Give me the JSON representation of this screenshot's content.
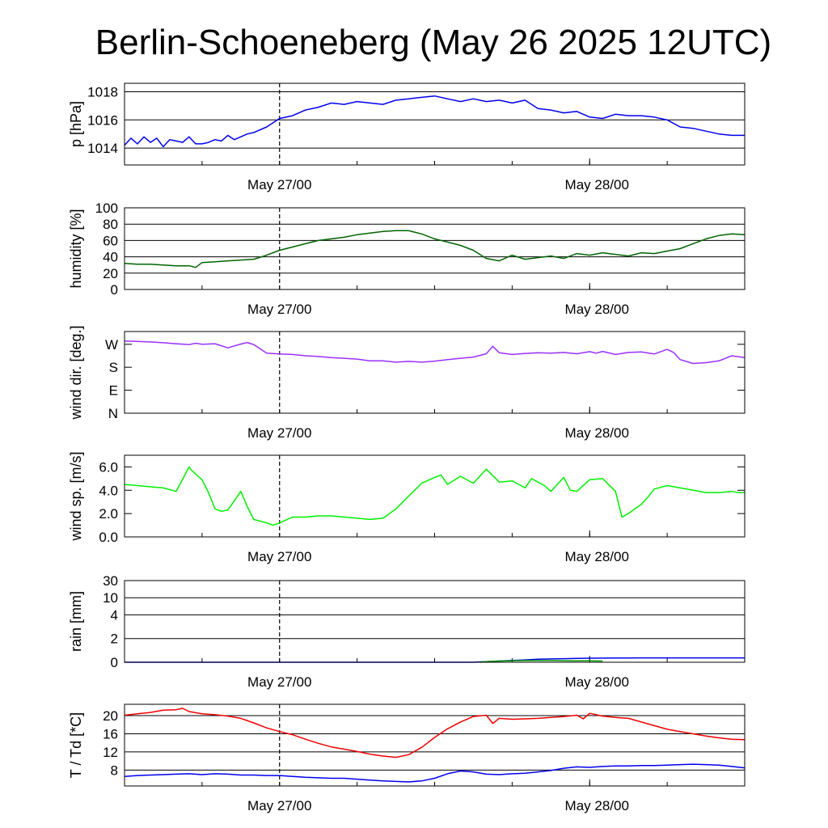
{
  "title": "Berlin-Schoeneberg (May 26 2025 12UTC)",
  "x_labels": [
    "May 27/00",
    "May 28/00"
  ],
  "chart_data": [
    {
      "type": "line",
      "ylabel": "p [hPa]",
      "ylim": [
        1012.8,
        1018.6
      ],
      "yticks": [
        1014,
        1016,
        1018
      ],
      "ytick_labels": [
        "1014",
        "1016",
        "1018"
      ],
      "grid": true,
      "series": [
        {
          "color": "#0000ee",
          "x": [
            0,
            0.5,
            1,
            1.5,
            2,
            2.5,
            3,
            3.5,
            4,
            4.5,
            5,
            5.5,
            6,
            6.5,
            7,
            7.5,
            8,
            8.5,
            9,
            9.5,
            10,
            11,
            12,
            13,
            14,
            15,
            16,
            17,
            18,
            19,
            20,
            21,
            22,
            23,
            24,
            25,
            26,
            27,
            28,
            29,
            30,
            31,
            32,
            33,
            34,
            35,
            36,
            37,
            38,
            39,
            40,
            41,
            42,
            43,
            44,
            45,
            46,
            47,
            48
          ],
          "y": [
            1014.2,
            1014.7,
            1014.3,
            1014.8,
            1014.4,
            1014.7,
            1014.1,
            1014.6,
            1014.5,
            1014.4,
            1014.8,
            1014.3,
            1014.3,
            1014.4,
            1014.6,
            1014.5,
            1014.9,
            1014.6,
            1014.8,
            1015.0,
            1015.1,
            1015.5,
            1016.1,
            1016.3,
            1016.7,
            1016.9,
            1017.2,
            1017.1,
            1017.3,
            1017.2,
            1017.1,
            1017.4,
            1017.5,
            1017.6,
            1017.7,
            1017.5,
            1017.3,
            1017.5,
            1017.3,
            1017.4,
            1017.2,
            1017.4,
            1016.8,
            1016.7,
            1016.5,
            1016.6,
            1016.2,
            1016.1,
            1016.4,
            1016.3,
            1016.3,
            1016.2,
            1016.0,
            1015.5,
            1015.4,
            1015.2,
            1015.0,
            1014.9,
            1014.9
          ]
        }
      ]
    },
    {
      "type": "line",
      "ylabel": "humidity [%]",
      "ylim": [
        0,
        100
      ],
      "yticks": [
        0,
        20,
        40,
        60,
        80,
        100
      ],
      "ytick_labels": [
        "0",
        "20",
        "40",
        "60",
        "80",
        "100"
      ],
      "grid": true,
      "series": [
        {
          "color": "#006400",
          "x": [
            0,
            1,
            2,
            3,
            4,
            5,
            5.5,
            6,
            7,
            8,
            9,
            10,
            11,
            12,
            13,
            14,
            15,
            16,
            17,
            18,
            19,
            20,
            21,
            22,
            23,
            24,
            25,
            26,
            27,
            27.5,
            28,
            29,
            30,
            31,
            32,
            33,
            34,
            35,
            36,
            37,
            38,
            39,
            40,
            41,
            42,
            43,
            44,
            45,
            46,
            47,
            48
          ],
          "y": [
            32,
            31,
            31,
            30,
            29,
            29,
            27,
            33,
            34,
            35,
            36,
            37,
            42,
            48,
            52,
            56,
            60,
            62,
            64,
            67,
            69,
            71,
            72,
            72,
            68,
            62,
            58,
            54,
            48,
            43,
            38,
            35,
            42,
            37,
            39,
            41,
            38,
            44,
            42,
            45,
            43,
            41,
            45,
            44,
            47,
            50,
            56,
            62,
            66,
            68,
            67
          ]
        }
      ]
    },
    {
      "type": "line",
      "ylabel": "wind dir. [deg.]",
      "ylim": [
        0,
        320
      ],
      "yticks": [
        0,
        90,
        180,
        270
      ],
      "ytick_labels": [
        "N",
        "E",
        "S",
        "W"
      ],
      "grid": false,
      "series": [
        {
          "color": "#9b30ff",
          "x": [
            0,
            1,
            2,
            3,
            4,
            5,
            5.5,
            6,
            7,
            8,
            9,
            9.5,
            10,
            11,
            12,
            13,
            14,
            15,
            16,
            17,
            18,
            19,
            20,
            21,
            22,
            23,
            24,
            25,
            26,
            27,
            28,
            28.5,
            29,
            30,
            31,
            32,
            33,
            34,
            35,
            36,
            36.5,
            37,
            38,
            39,
            40,
            41,
            42,
            42.5,
            43,
            44,
            45,
            46,
            47,
            48
          ],
          "y": [
            283,
            281,
            279,
            276,
            272,
            269,
            274,
            270,
            272,
            256,
            271,
            277,
            269,
            235,
            232,
            230,
            225,
            222,
            218,
            215,
            212,
            205,
            205,
            200,
            203,
            200,
            204,
            210,
            215,
            220,
            233,
            262,
            237,
            230,
            234,
            237,
            235,
            238,
            233,
            241,
            235,
            242,
            230,
            238,
            240,
            232,
            250,
            238,
            210,
            195,
            198,
            205,
            225,
            218
          ]
        }
      ]
    },
    {
      "type": "line",
      "ylabel": "wind sp. [m/s]",
      "ylim": [
        0,
        7
      ],
      "yticks": [
        0,
        2,
        4,
        6
      ],
      "ytick_labels": [
        "0.0",
        "2.0",
        "4.0",
        "6.0"
      ],
      "grid": false,
      "series": [
        {
          "color": "#00ee00",
          "x": [
            0,
            1,
            2,
            3,
            4,
            5,
            5.2,
            6,
            6.5,
            7,
            7.5,
            8,
            9,
            9.5,
            10,
            11,
            11.5,
            12,
            13,
            14,
            15,
            16,
            17,
            18,
            19,
            20,
            21,
            22,
            23,
            24,
            24.5,
            25,
            26,
            27,
            28,
            29,
            30,
            31,
            31.5,
            32,
            32.5,
            33,
            34,
            34.5,
            35,
            36,
            37,
            38,
            38.5,
            39,
            40,
            40.5,
            41,
            42,
            43,
            44,
            45,
            46,
            47,
            47.5,
            48
          ],
          "y": [
            4.5,
            4.4,
            4.3,
            4.2,
            3.9,
            6.0,
            5.7,
            4.9,
            3.8,
            2.4,
            2.2,
            2.3,
            3.9,
            2.6,
            1.5,
            1.2,
            1.0,
            1.2,
            1.7,
            1.7,
            1.8,
            1.8,
            1.7,
            1.6,
            1.5,
            1.6,
            2.4,
            3.5,
            4.6,
            5.1,
            5.3,
            4.5,
            5.2,
            4.6,
            5.8,
            4.7,
            4.8,
            4.2,
            5.0,
            4.7,
            4.4,
            3.9,
            5.1,
            4.0,
            3.9,
            4.9,
            5.0,
            3.9,
            1.7,
            2.0,
            2.8,
            3.4,
            4.1,
            4.4,
            4.2,
            4.0,
            3.8,
            3.8,
            3.9,
            3.8,
            3.8
          ]
        }
      ]
    },
    {
      "type": "line",
      "ylabel": "rain [mm]",
      "ylim": [
        0,
        30
      ],
      "yticks": [
        0,
        2,
        4,
        10,
        30
      ],
      "ytick_labels": [
        "0",
        "2",
        "4",
        "10",
        "30"
      ],
      "grid": true,
      "series": [
        {
          "color": "#0000ee",
          "x": [
            0,
            27,
            28,
            29,
            30,
            31,
            32,
            33,
            34,
            35,
            36,
            37,
            38,
            39,
            40,
            41,
            42,
            43,
            44,
            45,
            46,
            47,
            48
          ],
          "y": [
            0,
            0,
            0.05,
            0.1,
            0.15,
            0.2,
            0.25,
            0.28,
            0.3,
            0.32,
            0.34,
            0.35,
            0.36,
            0.36,
            0.37,
            0.37,
            0.37,
            0.37,
            0.37,
            0.37,
            0.37,
            0.37,
            0.37
          ]
        },
        {
          "color": "#009900",
          "x": [
            27.5,
            28,
            29,
            30,
            31,
            32,
            33,
            34,
            35,
            36,
            37
          ],
          "y": [
            0,
            0.05,
            0.1,
            0.12,
            0.14,
            0.14,
            0.14,
            0.13,
            0.12,
            0.12,
            0.1
          ]
        }
      ]
    },
    {
      "type": "line",
      "ylabel": "T / Td [*C]",
      "ylim": [
        4.5,
        22.5
      ],
      "yticks": [
        8,
        12,
        16,
        20
      ],
      "ytick_labels": [
        "8",
        "12",
        "16",
        "20"
      ],
      "grid": true,
      "series": [
        {
          "color": "#ee0000",
          "x": [
            0,
            1,
            2,
            3,
            4,
            4.5,
            5,
            6,
            7,
            8,
            9,
            10,
            11,
            12,
            13,
            14,
            15,
            16,
            17,
            18,
            19,
            20,
            21,
            22,
            23,
            24,
            25,
            26,
            27,
            28,
            28.5,
            29,
            30,
            31,
            32,
            33,
            34,
            35,
            35.5,
            36,
            37,
            38,
            39,
            40,
            41,
            42,
            43,
            44,
            45,
            46,
            47,
            48
          ],
          "y": [
            20.1,
            20.4,
            20.7,
            21.2,
            21.3,
            21.6,
            20.9,
            20.4,
            20.2,
            19.9,
            19.4,
            18.4,
            17.3,
            16.5,
            15.8,
            14.8,
            13.9,
            13.1,
            12.6,
            12.1,
            11.5,
            11.1,
            10.8,
            11.4,
            13.0,
            15.2,
            17.1,
            18.6,
            19.8,
            20.1,
            18.3,
            19.4,
            19.2,
            19.3,
            19.4,
            19.6,
            19.8,
            20.1,
            19.3,
            20.5,
            19.9,
            19.6,
            19.4,
            18.6,
            17.8,
            17.0,
            16.5,
            16.0,
            15.5,
            15.1,
            14.8,
            14.7
          ]
        },
        {
          "color": "#0000ee",
          "x": [
            0,
            1,
            2,
            3,
            4,
            5,
            6,
            7,
            8,
            9,
            10,
            11,
            12,
            13,
            14,
            15,
            16,
            17,
            18,
            19,
            20,
            21,
            22,
            23,
            24,
            25,
            26,
            27,
            28,
            29,
            30,
            31,
            32,
            33,
            34,
            35,
            36,
            37,
            38,
            39,
            40,
            41,
            42,
            43,
            44,
            45,
            46,
            47,
            48
          ],
          "y": [
            6.6,
            6.8,
            6.9,
            7.0,
            7.1,
            7.2,
            7.0,
            7.2,
            7.1,
            6.9,
            6.9,
            6.8,
            6.8,
            6.6,
            6.4,
            6.3,
            6.2,
            6.2,
            6.0,
            5.8,
            5.6,
            5.5,
            5.4,
            5.6,
            6.2,
            7.2,
            7.8,
            7.6,
            7.1,
            7.0,
            7.2,
            7.3,
            7.6,
            7.9,
            8.4,
            8.7,
            8.6,
            8.8,
            8.9,
            8.9,
            9.0,
            9.0,
            9.1,
            9.2,
            9.3,
            9.2,
            9.1,
            8.8,
            8.5
          ]
        }
      ]
    }
  ]
}
